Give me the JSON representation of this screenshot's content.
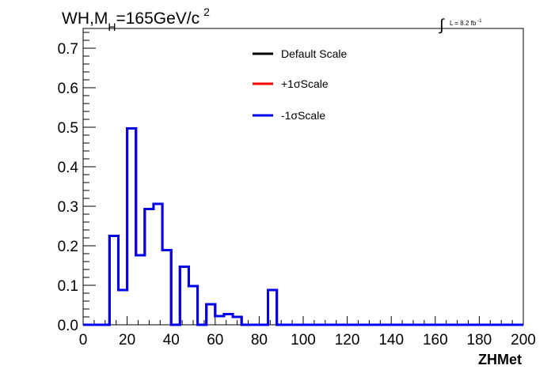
{
  "chart_data": {
    "type": "step",
    "title": "WH,M",
    "title_subscript": "H",
    "title_rest": "=165GeV/c",
    "title_superscript": "2",
    "lumi_label": "L = 8.2 fb",
    "lumi_superscript": "-1",
    "xlabel": "ZHMet",
    "ylabel": "",
    "xlim": [
      0,
      200
    ],
    "ylim": [
      0,
      0.75
    ],
    "x_ticks": [
      "0",
      "20",
      "40",
      "60",
      "80",
      "100",
      "120",
      "140",
      "160",
      "180",
      "200"
    ],
    "x_tick_values": [
      0,
      20,
      40,
      60,
      80,
      100,
      120,
      140,
      160,
      180,
      200
    ],
    "y_ticks": [
      "0.0",
      "0.1",
      "0.2",
      "0.3",
      "0.4",
      "0.5",
      "0.6",
      "0.7"
    ],
    "y_tick_values": [
      0,
      0.1,
      0.2,
      0.3,
      0.4,
      0.5,
      0.6,
      0.7
    ],
    "bin_edges": [
      0,
      4,
      8,
      12,
      16,
      20,
      24,
      28,
      32,
      36,
      40,
      44,
      48,
      52,
      56,
      60,
      64,
      68,
      72,
      76,
      80,
      84,
      88,
      92,
      96,
      100,
      104,
      108,
      112,
      116,
      120,
      124,
      128,
      132,
      136,
      140,
      144,
      148,
      152,
      156,
      160,
      164,
      168,
      172,
      176,
      180,
      184,
      188,
      192,
      196,
      200
    ],
    "series": [
      {
        "name": "Default Scale",
        "color": "#000000",
        "values": [
          0,
          0,
          0,
          0.225,
          0.088,
          0.497,
          0.176,
          0.293,
          0.306,
          0.189,
          0,
          0.147,
          0.098,
          0,
          0.052,
          0.022,
          0.027,
          0.02,
          0,
          0,
          0,
          0.088,
          0,
          0,
          0,
          0,
          0,
          0,
          0,
          0,
          0,
          0,
          0,
          0,
          0,
          0,
          0,
          0,
          0,
          0,
          0,
          0,
          0,
          0,
          0,
          0,
          0,
          0,
          0,
          0
        ]
      },
      {
        "name": "+1σScale",
        "color": "#ff0000",
        "values": [
          0,
          0,
          0,
          0.225,
          0.088,
          0.497,
          0.176,
          0.293,
          0.306,
          0.189,
          0,
          0.147,
          0.098,
          0,
          0.052,
          0.022,
          0.027,
          0.02,
          0,
          0,
          0,
          0.088,
          0,
          0,
          0,
          0,
          0,
          0,
          0,
          0,
          0,
          0,
          0,
          0,
          0,
          0,
          0,
          0,
          0,
          0,
          0,
          0,
          0,
          0,
          0,
          0,
          0,
          0,
          0,
          0
        ]
      },
      {
        "name": "-1σScale",
        "color": "#0000ee",
        "values": [
          0,
          0,
          0,
          0.225,
          0.088,
          0.497,
          0.176,
          0.293,
          0.306,
          0.189,
          0,
          0.147,
          0.098,
          0,
          0.052,
          0.022,
          0.027,
          0.02,
          0,
          0,
          0,
          0.088,
          0,
          0,
          0,
          0,
          0,
          0,
          0,
          0,
          0,
          0,
          0,
          0,
          0,
          0,
          0,
          0,
          0,
          0,
          0,
          0,
          0,
          0,
          0,
          0,
          0,
          0,
          0,
          0
        ]
      }
    ],
    "legend_position": "top-center",
    "grid": false
  }
}
